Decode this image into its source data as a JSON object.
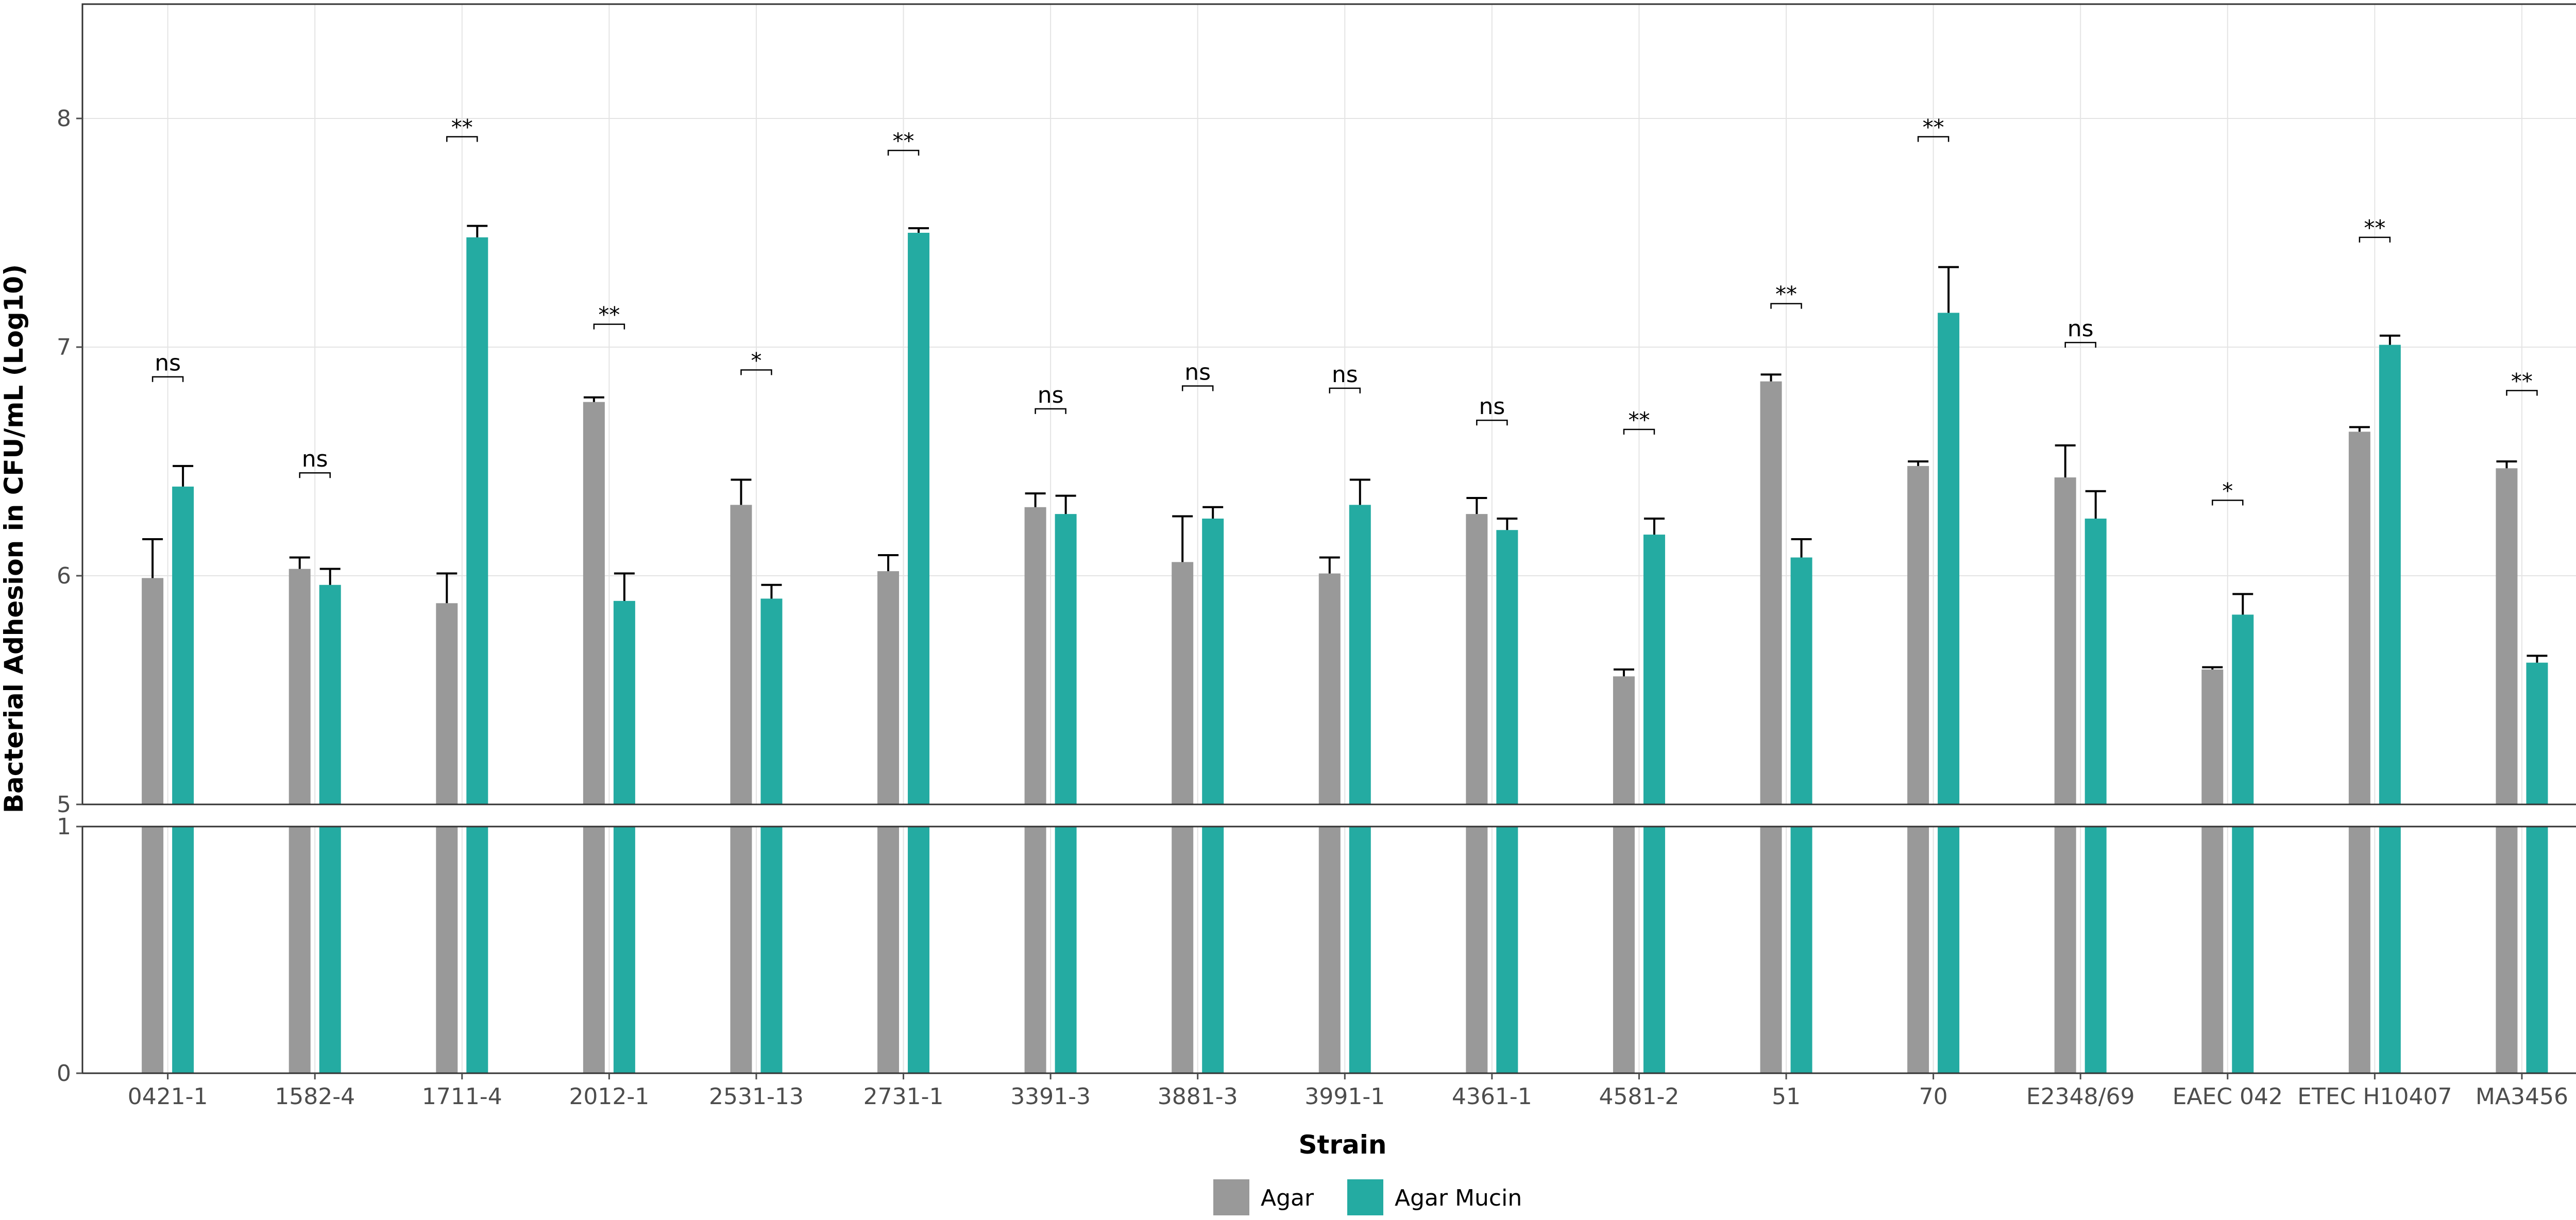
{
  "chart_data": {
    "type": "bar",
    "xlabel": "Strain",
    "ylabel": "Bacterial Adhesion in CFU/mL (Log10)",
    "axis_break": true,
    "upper_panel_ylim": [
      5,
      8.5
    ],
    "lower_panel_ylim": [
      0,
      1
    ],
    "upper_panel_yticks": [
      "5",
      "6",
      "7",
      "8"
    ],
    "lower_panel_yticks": [
      "0",
      "1"
    ],
    "grid": true,
    "legend_position": "bottom",
    "categories": [
      "0421-1",
      "1582-4",
      "1711-4",
      "2012-1",
      "2531-13",
      "2731-1",
      "3391-3",
      "3881-3",
      "3991-1",
      "4361-1",
      "4581-2",
      "51",
      "70",
      "E2348/69",
      "EAEC 042",
      "ETEC H10407",
      "MA3456"
    ],
    "series": [
      {
        "name": "Agar",
        "color": "#999999",
        "values": [
          5.99,
          6.03,
          5.88,
          6.76,
          6.31,
          6.02,
          6.3,
          6.06,
          6.01,
          6.27,
          5.56,
          6.85,
          6.48,
          6.43,
          5.59,
          6.63,
          6.47
        ],
        "error": [
          0.17,
          0.05,
          0.13,
          0.02,
          0.11,
          0.07,
          0.06,
          0.2,
          0.07,
          0.07,
          0.03,
          0.03,
          0.02,
          0.14,
          0.01,
          0.02,
          0.03
        ]
      },
      {
        "name": "Agar Mucin",
        "color": "#24aba2",
        "values": [
          6.39,
          5.96,
          7.48,
          5.89,
          5.9,
          7.5,
          6.27,
          6.25,
          6.31,
          6.2,
          6.18,
          6.08,
          7.15,
          6.25,
          5.83,
          7.01,
          5.62
        ],
        "error": [
          0.09,
          0.07,
          0.05,
          0.12,
          0.06,
          0.02,
          0.08,
          0.05,
          0.11,
          0.05,
          0.07,
          0.08,
          0.2,
          0.12,
          0.09,
          0.04,
          0.03
        ]
      }
    ],
    "significance": [
      "ns",
      "ns",
      "**",
      "**",
      "*",
      "**",
      "ns",
      "ns",
      "ns",
      "ns",
      "**",
      "**",
      "**",
      "ns",
      "*",
      "**",
      "**"
    ],
    "significance_bracket_y": [
      6.87,
      6.45,
      7.92,
      7.1,
      6.9,
      7.86,
      6.73,
      6.83,
      6.82,
      6.68,
      6.64,
      7.19,
      7.92,
      7.02,
      6.33,
      7.48,
      6.81
    ]
  }
}
